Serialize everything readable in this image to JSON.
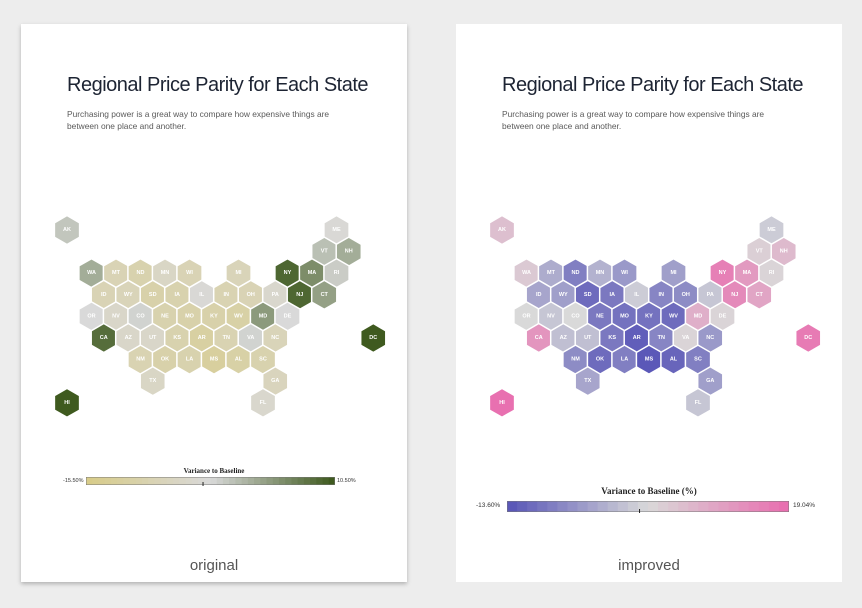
{
  "title": "Regional Price Parity for Each State",
  "subtitle": "Purchasing power is a great way to compare how expensive things are between one place and another.",
  "colors": {
    "original_low": "#d8cc8a",
    "original_mid": "#d9d9d9",
    "original_high": "#3f5a1f",
    "improved_low": "#5b58b8",
    "improved_mid": "#d9d9d9",
    "improved_high": "#e870b0"
  },
  "cards": {
    "original": {
      "caption": "original",
      "legend": {
        "title": "Variance to Baseline",
        "min_label": "-15.50%",
        "max_label": "10.50%",
        "min": -15.5,
        "max": 10.5
      }
    },
    "improved": {
      "caption": "improved",
      "legend": {
        "title": "Variance to Baseline (%)",
        "min_label": "-13.60%",
        "max_label": "19.04%",
        "min": -13.6,
        "max": 19.04
      }
    }
  },
  "states": [
    {
      "abbr": "AK",
      "row": 0,
      "col": 0,
      "orig": 0.15,
      "impr": 0.25
    },
    {
      "abbr": "ME",
      "row": 0,
      "col": 11,
      "orig": -0.05,
      "impr": -0.1
    },
    {
      "abbr": "VT",
      "row": 1,
      "col": 10,
      "orig": 0.2,
      "impr": 0.1
    },
    {
      "abbr": "NH",
      "row": 1,
      "col": 11,
      "orig": 0.35,
      "impr": 0.3
    },
    {
      "abbr": "WA",
      "row": 2,
      "col": 1,
      "orig": 0.35,
      "impr": 0.15
    },
    {
      "abbr": "MT",
      "row": 2,
      "col": 2,
      "orig": -0.45,
      "impr": -0.35
    },
    {
      "abbr": "ND",
      "row": 2,
      "col": 3,
      "orig": -0.55,
      "impr": -0.7
    },
    {
      "abbr": "MN",
      "row": 2,
      "col": 4,
      "orig": -0.25,
      "impr": -0.3
    },
    {
      "abbr": "WI",
      "row": 2,
      "col": 5,
      "orig": -0.45,
      "impr": -0.5
    },
    {
      "abbr": "MI",
      "row": 2,
      "col": 7,
      "orig": -0.4,
      "impr": -0.45
    },
    {
      "abbr": "NY",
      "row": 2,
      "col": 9,
      "orig": 0.9,
      "impr": 0.85
    },
    {
      "abbr": "MA",
      "row": 2,
      "col": 10,
      "orig": 0.6,
      "impr": 0.6
    },
    {
      "abbr": "RI",
      "row": 2,
      "col": 11,
      "orig": 0.1,
      "impr": 0.05
    },
    {
      "abbr": "ID",
      "row": 3,
      "col": 1,
      "orig": -0.45,
      "impr": -0.4
    },
    {
      "abbr": "WY",
      "row": 3,
      "col": 2,
      "orig": -0.4,
      "impr": -0.45
    },
    {
      "abbr": "SD",
      "row": 3,
      "col": 3,
      "orig": -0.6,
      "impr": -0.85
    },
    {
      "abbr": "IA",
      "row": 3,
      "col": 4,
      "orig": -0.55,
      "impr": -0.75
    },
    {
      "abbr": "IL",
      "row": 3,
      "col": 5,
      "orig": -0.05,
      "impr": -0.1
    },
    {
      "abbr": "IN",
      "row": 3,
      "col": 6,
      "orig": -0.5,
      "impr": -0.65
    },
    {
      "abbr": "OH",
      "row": 3,
      "col": 7,
      "orig": -0.45,
      "impr": -0.6
    },
    {
      "abbr": "PA",
      "row": 3,
      "col": 8,
      "orig": -0.15,
      "impr": -0.15
    },
    {
      "abbr": "NJ",
      "row": 3,
      "col": 9,
      "orig": 0.9,
      "impr": 0.75
    },
    {
      "abbr": "CT",
      "row": 3,
      "col": 10,
      "orig": 0.45,
      "impr": 0.5
    },
    {
      "abbr": "OR",
      "row": 4,
      "col": 1,
      "orig": 0.0,
      "impr": 0.0
    },
    {
      "abbr": "NV",
      "row": 4,
      "col": 2,
      "orig": -0.2,
      "impr": -0.15
    },
    {
      "abbr": "CO",
      "row": 4,
      "col": 3,
      "orig": 0.05,
      "impr": 0.0
    },
    {
      "abbr": "NE",
      "row": 4,
      "col": 4,
      "orig": -0.55,
      "impr": -0.75
    },
    {
      "abbr": "MO",
      "row": 4,
      "col": 5,
      "orig": -0.6,
      "impr": -0.8
    },
    {
      "abbr": "KY",
      "row": 4,
      "col": 6,
      "orig": -0.6,
      "impr": -0.8
    },
    {
      "abbr": "WV",
      "row": 4,
      "col": 7,
      "orig": -0.65,
      "impr": -0.85
    },
    {
      "abbr": "MD",
      "row": 4,
      "col": 8,
      "orig": 0.5,
      "impr": 0.4
    },
    {
      "abbr": "DE",
      "row": 4,
      "col": 9,
      "orig": 0.0,
      "impr": 0.05
    },
    {
      "abbr": "CA",
      "row": 5,
      "col": 1,
      "orig": 0.85,
      "impr": 0.65
    },
    {
      "abbr": "AZ",
      "row": 5,
      "col": 2,
      "orig": -0.2,
      "impr": -0.2
    },
    {
      "abbr": "UT",
      "row": 5,
      "col": 3,
      "orig": -0.2,
      "impr": -0.2
    },
    {
      "abbr": "KS",
      "row": 5,
      "col": 4,
      "orig": -0.55,
      "impr": -0.75
    },
    {
      "abbr": "AR",
      "row": 5,
      "col": 5,
      "orig": -0.7,
      "impr": -0.95
    },
    {
      "abbr": "TN",
      "row": 5,
      "col": 6,
      "orig": -0.5,
      "impr": -0.65
    },
    {
      "abbr": "VA",
      "row": 5,
      "col": 7,
      "orig": 0.05,
      "impr": 0.05
    },
    {
      "abbr": "NC",
      "row": 5,
      "col": 8,
      "orig": -0.4,
      "impr": -0.5
    },
    {
      "abbr": "DC",
      "row": 5,
      "col": 12,
      "orig": 1.0,
      "impr": 0.9
    },
    {
      "abbr": "NM",
      "row": 6,
      "col": 3,
      "orig": -0.5,
      "impr": -0.6
    },
    {
      "abbr": "OK",
      "row": 6,
      "col": 4,
      "orig": -0.6,
      "impr": -0.85
    },
    {
      "abbr": "LA",
      "row": 6,
      "col": 5,
      "orig": -0.55,
      "impr": -0.7
    },
    {
      "abbr": "MS",
      "row": 6,
      "col": 6,
      "orig": -0.75,
      "impr": -1.0
    },
    {
      "abbr": "AL",
      "row": 6,
      "col": 7,
      "orig": -0.65,
      "impr": -0.9
    },
    {
      "abbr": "SC",
      "row": 6,
      "col": 8,
      "orig": -0.55,
      "impr": -0.7
    },
    {
      "abbr": "TX",
      "row": 7,
      "col": 3,
      "orig": -0.25,
      "impr": -0.4
    },
    {
      "abbr": "GA",
      "row": 7,
      "col": 8,
      "orig": -0.35,
      "impr": -0.45
    },
    {
      "abbr": "HI",
      "row": 8,
      "col": 0,
      "orig": 1.0,
      "impr": 1.0
    },
    {
      "abbr": "FL",
      "row": 8,
      "col": 8,
      "orig": -0.15,
      "impr": -0.15
    }
  ]
}
